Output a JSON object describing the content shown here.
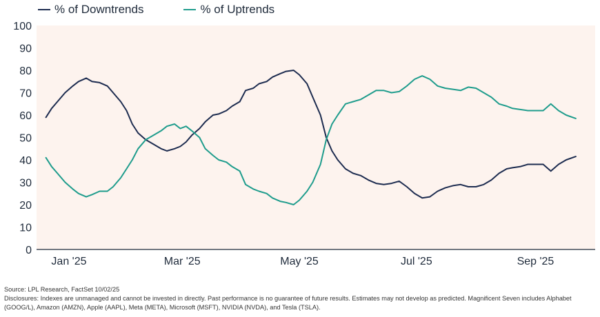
{
  "colors": {
    "plot_bg": "#fdf3ee",
    "downtrends": "#1c2b4f",
    "uptrends": "#1e9c8c",
    "axis": "#1e2a3a"
  },
  "footer": {
    "source": "Source: LPL Research, FactSet 10/02/25",
    "disclosure": "Disclosures: Indexes are unmanaged and cannot be invested in directly. Past performance is no guarantee of future results. Estimates may not develop as predicted. Magnificent Seven includes Alphabet (GOOG/L), Amazon (AMZN), Apple (AAPL), Meta (META), Microsoft (MSFT), NVIDIA (NVDA), and Tesla (TSLA)."
  },
  "chart_data": {
    "type": "line",
    "title": "",
    "xlabel": "",
    "ylabel": "",
    "ylim": [
      0,
      100
    ],
    "yticks": [
      0,
      10,
      20,
      30,
      40,
      50,
      60,
      70,
      80,
      90,
      100
    ],
    "xlim": [
      "2025-01-01",
      "2025-10-01"
    ],
    "xticks": [
      {
        "date": "2025-01-15",
        "label": "Jan '25"
      },
      {
        "date": "2025-03-15",
        "label": "Mar '25"
      },
      {
        "date": "2025-05-15",
        "label": "May '25"
      },
      {
        "date": "2025-07-15",
        "label": "Jul '25"
      },
      {
        "date": "2025-09-15",
        "label": "Sep '25"
      }
    ],
    "legend": "top-left",
    "grid": false,
    "series": [
      {
        "name": "% of Downtrends",
        "color": "#1c2b4f",
        "points": [
          [
            "2025-01-03",
            59
          ],
          [
            "2025-01-06",
            63
          ],
          [
            "2025-01-09",
            66
          ],
          [
            "2025-01-13",
            70
          ],
          [
            "2025-01-17",
            73
          ],
          [
            "2025-01-20",
            75
          ],
          [
            "2025-01-24",
            76.5
          ],
          [
            "2025-01-27",
            75
          ],
          [
            "2025-01-31",
            74.5
          ],
          [
            "2025-02-04",
            73
          ],
          [
            "2025-02-07",
            70
          ],
          [
            "2025-02-11",
            66
          ],
          [
            "2025-02-14",
            62
          ],
          [
            "2025-02-17",
            56
          ],
          [
            "2025-02-20",
            52
          ],
          [
            "2025-02-24",
            49
          ],
          [
            "2025-02-28",
            47
          ],
          [
            "2025-03-04",
            45
          ],
          [
            "2025-03-07",
            44
          ],
          [
            "2025-03-11",
            45
          ],
          [
            "2025-03-14",
            46
          ],
          [
            "2025-03-17",
            48
          ],
          [
            "2025-03-20",
            51
          ],
          [
            "2025-03-24",
            54
          ],
          [
            "2025-03-27",
            57
          ],
          [
            "2025-03-31",
            60
          ],
          [
            "2025-04-03",
            60.5
          ],
          [
            "2025-04-07",
            62
          ],
          [
            "2025-04-10",
            64
          ],
          [
            "2025-04-14",
            66
          ],
          [
            "2025-04-17",
            71
          ],
          [
            "2025-04-21",
            72
          ],
          [
            "2025-04-24",
            74
          ],
          [
            "2025-04-28",
            75
          ],
          [
            "2025-05-01",
            77
          ],
          [
            "2025-05-05",
            78.5
          ],
          [
            "2025-05-08",
            79.5
          ],
          [
            "2025-05-12",
            80
          ],
          [
            "2025-05-15",
            78
          ],
          [
            "2025-05-19",
            74
          ],
          [
            "2025-05-22",
            68
          ],
          [
            "2025-05-26",
            60
          ],
          [
            "2025-05-29",
            50
          ],
          [
            "2025-06-01",
            44
          ],
          [
            "2025-06-04",
            40
          ],
          [
            "2025-06-08",
            36
          ],
          [
            "2025-06-12",
            34
          ],
          [
            "2025-06-16",
            33
          ],
          [
            "2025-06-20",
            31
          ],
          [
            "2025-06-24",
            29.5
          ],
          [
            "2025-06-28",
            29
          ],
          [
            "2025-07-02",
            29.5
          ],
          [
            "2025-07-06",
            30.5
          ],
          [
            "2025-07-10",
            28
          ],
          [
            "2025-07-14",
            25
          ],
          [
            "2025-07-18",
            23
          ],
          [
            "2025-07-22",
            23.5
          ],
          [
            "2025-07-26",
            26
          ],
          [
            "2025-07-30",
            27.5
          ],
          [
            "2025-08-03",
            28.5
          ],
          [
            "2025-08-07",
            29
          ],
          [
            "2025-08-11",
            28
          ],
          [
            "2025-08-15",
            28
          ],
          [
            "2025-08-19",
            29
          ],
          [
            "2025-08-23",
            31
          ],
          [
            "2025-08-27",
            34
          ],
          [
            "2025-08-31",
            36
          ],
          [
            "2025-09-03",
            36.5
          ],
          [
            "2025-09-07",
            37
          ],
          [
            "2025-09-11",
            38
          ],
          [
            "2025-09-15",
            38
          ],
          [
            "2025-09-19",
            38
          ],
          [
            "2025-09-23",
            35
          ],
          [
            "2025-09-27",
            38
          ],
          [
            "2025-10-01",
            40
          ],
          [
            "2025-10-06",
            41.5
          ]
        ]
      },
      {
        "name": "% of Uptrends",
        "color": "#1e9c8c",
        "points": [
          [
            "2025-01-03",
            41
          ],
          [
            "2025-01-06",
            37
          ],
          [
            "2025-01-09",
            34
          ],
          [
            "2025-01-13",
            30
          ],
          [
            "2025-01-17",
            27
          ],
          [
            "2025-01-20",
            25
          ],
          [
            "2025-01-24",
            23.5
          ],
          [
            "2025-01-27",
            24.5
          ],
          [
            "2025-01-31",
            26
          ],
          [
            "2025-02-04",
            26
          ],
          [
            "2025-02-07",
            28
          ],
          [
            "2025-02-11",
            32
          ],
          [
            "2025-02-14",
            36
          ],
          [
            "2025-02-17",
            40
          ],
          [
            "2025-02-20",
            45
          ],
          [
            "2025-02-24",
            49
          ],
          [
            "2025-02-28",
            51
          ],
          [
            "2025-03-04",
            53
          ],
          [
            "2025-03-07",
            55
          ],
          [
            "2025-03-11",
            56
          ],
          [
            "2025-03-14",
            54
          ],
          [
            "2025-03-17",
            55
          ],
          [
            "2025-03-20",
            53
          ],
          [
            "2025-03-24",
            50
          ],
          [
            "2025-03-27",
            45
          ],
          [
            "2025-03-31",
            42
          ],
          [
            "2025-04-03",
            40
          ],
          [
            "2025-04-07",
            39
          ],
          [
            "2025-04-10",
            37
          ],
          [
            "2025-04-14",
            35
          ],
          [
            "2025-04-17",
            29
          ],
          [
            "2025-04-21",
            27
          ],
          [
            "2025-04-24",
            26
          ],
          [
            "2025-04-28",
            25
          ],
          [
            "2025-05-01",
            23
          ],
          [
            "2025-05-05",
            21.5
          ],
          [
            "2025-05-08",
            21
          ],
          [
            "2025-05-12",
            20
          ],
          [
            "2025-05-15",
            22
          ],
          [
            "2025-05-19",
            26
          ],
          [
            "2025-05-22",
            30
          ],
          [
            "2025-05-26",
            38
          ],
          [
            "2025-05-29",
            49
          ],
          [
            "2025-06-01",
            56
          ],
          [
            "2025-06-04",
            60
          ],
          [
            "2025-06-08",
            65
          ],
          [
            "2025-06-12",
            66
          ],
          [
            "2025-06-16",
            67
          ],
          [
            "2025-06-20",
            69
          ],
          [
            "2025-06-24",
            71
          ],
          [
            "2025-06-28",
            71
          ],
          [
            "2025-07-02",
            70
          ],
          [
            "2025-07-06",
            70.5
          ],
          [
            "2025-07-10",
            73
          ],
          [
            "2025-07-14",
            76
          ],
          [
            "2025-07-18",
            77.5
          ],
          [
            "2025-07-22",
            76
          ],
          [
            "2025-07-26",
            73
          ],
          [
            "2025-07-30",
            72
          ],
          [
            "2025-08-03",
            71.5
          ],
          [
            "2025-08-07",
            71
          ],
          [
            "2025-08-11",
            72.5
          ],
          [
            "2025-08-15",
            72
          ],
          [
            "2025-08-19",
            70
          ],
          [
            "2025-08-23",
            68
          ],
          [
            "2025-08-27",
            65
          ],
          [
            "2025-08-31",
            64
          ],
          [
            "2025-09-03",
            63
          ],
          [
            "2025-09-07",
            62.5
          ],
          [
            "2025-09-11",
            62
          ],
          [
            "2025-09-15",
            62
          ],
          [
            "2025-09-19",
            62
          ],
          [
            "2025-09-23",
            65
          ],
          [
            "2025-09-27",
            62
          ],
          [
            "2025-10-01",
            60
          ],
          [
            "2025-10-06",
            58.5
          ]
        ]
      }
    ]
  }
}
